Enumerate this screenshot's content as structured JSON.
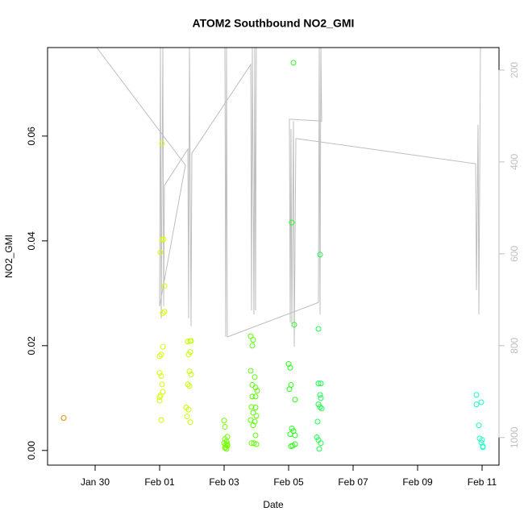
{
  "chart_data": {
    "type": "scatter",
    "title": "ATOM2 Southbound NO2_GMI",
    "x_label": "Date",
    "y_label": "NO2_GMI",
    "xlim": [
      28.525,
      42.525
    ],
    "ylim": [
      -0.0028,
      0.0769
    ],
    "y2lim": [
      1060,
      151
    ],
    "xticks": [
      {
        "value": 30,
        "label": "Jan 30"
      },
      {
        "value": 32,
        "label": "Feb 01"
      },
      {
        "value": 34,
        "label": "Feb 03"
      },
      {
        "value": 36,
        "label": "Feb 05"
      },
      {
        "value": 38,
        "label": "Feb 07"
      },
      {
        "value": 40,
        "label": "Feb 09"
      },
      {
        "value": 42,
        "label": "Feb 11"
      }
    ],
    "yticks": [
      {
        "value": 0,
        "label": "0.00"
      },
      {
        "value": 0.02,
        "label": "0.02"
      },
      {
        "value": 0.04,
        "label": "0.04"
      },
      {
        "value": 0.06,
        "label": "0.06"
      }
    ],
    "y2ticks": [
      200,
      400,
      600,
      800,
      1000
    ],
    "y2_color": "#bebebe",
    "x": [
      29.025,
      32.075,
      32.125,
      32.075,
      32.025,
      32.15,
      32.15,
      32.1,
      32.1,
      32.05,
      32.0,
      32.0,
      32.05,
      32.075,
      32.1,
      32.025,
      32.0,
      32.0,
      32.05,
      32.875,
      32.95,
      32.975,
      32.95,
      32.9,
      32.925,
      32.975,
      32.875,
      32.925,
      32.825,
      32.9,
      32.85,
      32.95,
      34.0,
      34.025,
      34.1,
      34.025,
      34.075,
      34.0,
      34.05,
      34.1,
      34.05,
      34.075,
      34.025,
      34.1,
      34.825,
      34.9,
      34.875,
      34.825,
      34.95,
      34.875,
      34.975,
      35.025,
      34.875,
      34.975,
      34.85,
      34.975,
      34.9,
      35.0,
      34.825,
      34.95,
      34.9,
      34.975,
      34.925,
      34.85,
      35.0,
      36.15,
      36.1,
      36.175,
      36.0,
      36.05,
      36.075,
      36.025,
      36.2,
      36.1,
      36.05,
      36.2,
      36.15,
      36.125,
      36.2,
      36.075,
      36.975,
      36.925,
      36.925,
      37.0,
      36.975,
      37.0,
      36.925,
      36.975,
      37.025,
      36.9,
      36.875,
      36.925,
      37.0,
      36.95,
      41.825,
      41.975,
      41.825,
      41.9,
      41.925,
      42.0,
      42.025,
      41.975,
      42.025
    ],
    "y": [
      0.0062,
      0.0586,
      0.0403,
      0.0402,
      0.0378,
      0.0314,
      0.0265,
      0.0262,
      0.0198,
      0.0183,
      0.018,
      0.0148,
      0.0142,
      0.0126,
      0.0112,
      0.0105,
      0.0102,
      0.0095,
      0.0058,
      0.0208,
      0.0209,
      0.0209,
      0.0188,
      0.0183,
      0.0151,
      0.0145,
      0.0126,
      0.0123,
      0.0082,
      0.0078,
      0.0065,
      0.0054,
      0.0057,
      0.0045,
      0.0026,
      0.0022,
      0.0017,
      0.0014,
      0.0011,
      0.0009,
      0.0006,
      0.0003,
      0.0005,
      0.0012,
      0.0218,
      0.0211,
      0.02,
      0.0152,
      0.014,
      0.0125,
      0.012,
      0.0114,
      0.0103,
      0.0103,
      0.0083,
      0.0082,
      0.0072,
      0.0066,
      0.0058,
      0.0055,
      0.0048,
      0.0029,
      0.0014,
      0.0014,
      0.0012,
      0.074,
      0.0435,
      0.024,
      0.0165,
      0.0158,
      0.0125,
      0.0117,
      0.0097,
      0.0042,
      0.0031,
      0.0029,
      0.0037,
      0.0009,
      0.0012,
      0.0008,
      0.0374,
      0.0232,
      0.0128,
      0.0128,
      0.0106,
      0.01,
      0.0088,
      0.0083,
      0.008,
      0.0055,
      0.0025,
      0.002,
      0.0014,
      0.0003,
      0.0106,
      0.0092,
      0.0088,
      0.0048,
      0.0023,
      0.002,
      0.0008,
      0.0015,
      0.0006
    ],
    "point_colors": [
      "#e68a00",
      "#d9ff00",
      "#d9ff00",
      "#d9ff00",
      "#d9ff00",
      "#d9ff00",
      "#d9ff00",
      "#d9ff00",
      "#d9ff00",
      "#d9ff00",
      "#d9ff00",
      "#d9ff00",
      "#d9ff00",
      "#d9ff00",
      "#d9ff00",
      "#d9ff00",
      "#d9ff00",
      "#d9ff00",
      "#d9ff00",
      "#c4ff00",
      "#c4ff00",
      "#c4ff00",
      "#c4ff00",
      "#c4ff00",
      "#c4ff00",
      "#c4ff00",
      "#c4ff00",
      "#c4ff00",
      "#c4ff00",
      "#c4ff00",
      "#c4ff00",
      "#c4ff00",
      "#73ff00",
      "#73ff00",
      "#73ff00",
      "#73ff00",
      "#73ff00",
      "#73ff00",
      "#73ff00",
      "#73ff00",
      "#73ff00",
      "#73ff00",
      "#73ff00",
      "#73ff00",
      "#5cff00",
      "#5cff00",
      "#5cff00",
      "#5cff00",
      "#5cff00",
      "#5cff00",
      "#5cff00",
      "#5cff00",
      "#5cff00",
      "#5cff00",
      "#5cff00",
      "#5cff00",
      "#5cff00",
      "#5cff00",
      "#5cff00",
      "#5cff00",
      "#5cff00",
      "#5cff00",
      "#5cff00",
      "#5cff00",
      "#5cff00",
      "#26ff1a",
      "#26ff1a",
      "#26ff1a",
      "#26ff1a",
      "#26ff1a",
      "#26ff1a",
      "#26ff1a",
      "#26ff1a",
      "#26ff1a",
      "#26ff1a",
      "#26ff1a",
      "#26ff1a",
      "#26ff1a",
      "#26ff1a",
      "#26ff1a",
      "#1aff4d",
      "#1aff4d",
      "#1aff4d",
      "#1aff4d",
      "#1aff4d",
      "#1aff4d",
      "#1aff4d",
      "#1aff4d",
      "#1aff4d",
      "#1aff4d",
      "#1aff4d",
      "#1aff4d",
      "#1aff4d",
      "#1aff4d",
      "#1affc4",
      "#1affc4",
      "#1affc4",
      "#1affc4",
      "#1affc4",
      "#1affc4",
      "#1affc4",
      "#1affc4",
      "#1affc4"
    ],
    "line": {
      "axis": "y2",
      "color": "#bebebe",
      "x": [
        30.05,
        32.8,
        32.0,
        32.025,
        32.05,
        32.1,
        32.125,
        32.15,
        32.875,
        32.9,
        32.925,
        32.975,
        33.0,
        34.825,
        34.85,
        34.875,
        34.925,
        34.95,
        34.975,
        35.0,
        34.025,
        34.05,
        34.075,
        34.1,
        36.925,
        36.95,
        36.975,
        37.0,
        37.025,
        36.025,
        36.05,
        36.075,
        36.1,
        36.15,
        36.175,
        36.225,
        41.8,
        41.825,
        41.875,
        41.9,
        41.95
      ],
      "y2": [
        151,
        407,
        714,
        151,
        741,
        151,
        714,
        451,
        372,
        741,
        151,
        758,
        381,
        188,
        723,
        151,
        732,
        151,
        723,
        151,
        151,
        781,
        151,
        781,
        706,
        151,
        732,
        151,
        311,
        307,
        749,
        328,
        758,
        311,
        802,
        349,
        404,
        679,
        319,
        732,
        151
      ]
    }
  }
}
